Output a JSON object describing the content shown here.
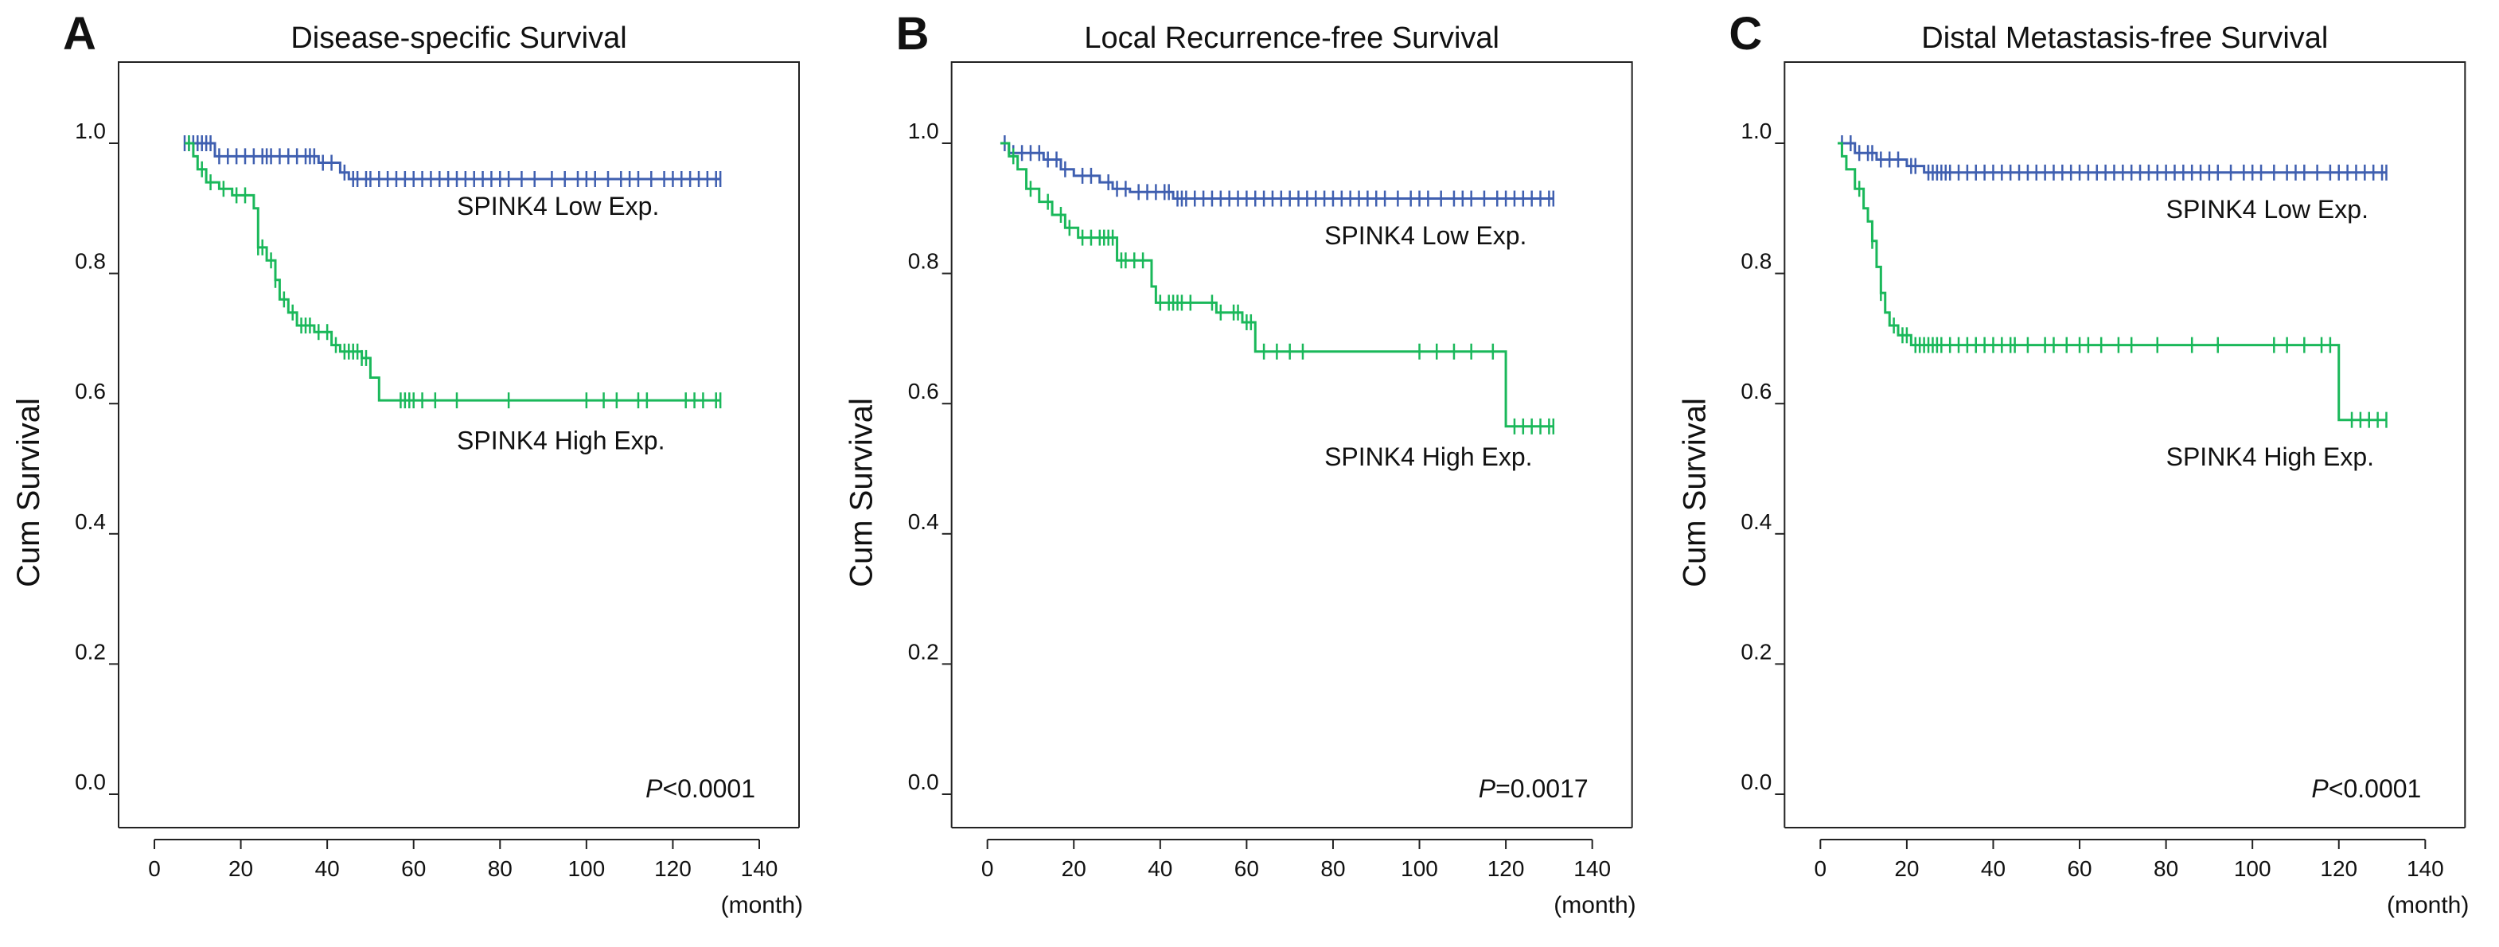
{
  "chart_data": [
    {
      "type": "line",
      "panel": "A",
      "title": "Disease-specific Survival",
      "ylabel": "Cum Survival",
      "xlabel": "(month)",
      "xlim": [
        0,
        140
      ],
      "ylim": [
        0.0,
        1.0
      ],
      "xticks": [
        "0",
        "20",
        "40",
        "60",
        "80",
        "100",
        "120",
        "140"
      ],
      "yticks": [
        "0.0",
        "0.2",
        "0.4",
        "0.6",
        "0.8",
        "1.0"
      ],
      "p_prefix": "P",
      "p_value": "<0.0001",
      "series": [
        {
          "name": "SPINK4 Low Exp.",
          "color": "#3f5fb0",
          "label_pos": [
            70,
            0.89
          ],
          "steps": [
            [
              7,
              1.0
            ],
            [
              14,
              0.98
            ],
            [
              38,
              0.97
            ],
            [
              43,
              0.955
            ],
            [
              45,
              0.945
            ],
            [
              131,
              0.945
            ]
          ],
          "censors": [
            7,
            8,
            9,
            10,
            11,
            12,
            13,
            15,
            17,
            19,
            21,
            23,
            25,
            26,
            27,
            29,
            31,
            33,
            35,
            36,
            37,
            39,
            41,
            44,
            46,
            47,
            49,
            50,
            52,
            54,
            56,
            58,
            60,
            62,
            64,
            66,
            68,
            70,
            72,
            74,
            76,
            78,
            80,
            82,
            85,
            88,
            92,
            95,
            98,
            100,
            102,
            105,
            108,
            110,
            112,
            115,
            118,
            120,
            122,
            124,
            126,
            128,
            130,
            131
          ]
        },
        {
          "name": "SPINK4 High Exp.",
          "color": "#1ab85a",
          "label_pos": [
            70,
            0.53
          ],
          "steps": [
            [
              7,
              1.0
            ],
            [
              9,
              0.98
            ],
            [
              10,
              0.96
            ],
            [
              12,
              0.94
            ],
            [
              15,
              0.93
            ],
            [
              18,
              0.92
            ],
            [
              23,
              0.9
            ],
            [
              24,
              0.84
            ],
            [
              26,
              0.82
            ],
            [
              28,
              0.79
            ],
            [
              29,
              0.76
            ],
            [
              31,
              0.74
            ],
            [
              33,
              0.72
            ],
            [
              37,
              0.71
            ],
            [
              41,
              0.69
            ],
            [
              43,
              0.68
            ],
            [
              48,
              0.67
            ],
            [
              50,
              0.64
            ],
            [
              52,
              0.605
            ],
            [
              131,
              0.605
            ]
          ],
          "censors": [
            8,
            11,
            13,
            16,
            19,
            21,
            24,
            25,
            27,
            28,
            30,
            32,
            34,
            35,
            36,
            38,
            40,
            42,
            44,
            45,
            46,
            47,
            48,
            49,
            57,
            58,
            59,
            60,
            62,
            65,
            70,
            82,
            100,
            104,
            107,
            112,
            114,
            123,
            125,
            127,
            130,
            131
          ]
        }
      ]
    },
    {
      "type": "line",
      "panel": "B",
      "title": "Local Recurrence-free Survival",
      "ylabel": "Cum Survival",
      "xlabel": "(month)",
      "xlim": [
        0,
        140
      ],
      "ylim": [
        0.0,
        1.0
      ],
      "xticks": [
        "0",
        "20",
        "40",
        "60",
        "80",
        "100",
        "120",
        "140"
      ],
      "yticks": [
        "0.0",
        "0.2",
        "0.4",
        "0.6",
        "0.8",
        "1.0"
      ],
      "p_prefix": "P",
      "p_value": "=0.0017",
      "series": [
        {
          "name": "SPINK4 Low Exp.",
          "color": "#3f5fb0",
          "label_pos": [
            78,
            0.845
          ],
          "steps": [
            [
              3,
              1.0
            ],
            [
              5,
              0.985
            ],
            [
              13,
              0.975
            ],
            [
              17,
              0.96
            ],
            [
              20,
              0.95
            ],
            [
              26,
              0.94
            ],
            [
              29,
              0.93
            ],
            [
              33,
              0.925
            ],
            [
              43,
              0.915
            ],
            [
              131,
              0.915
            ]
          ],
          "censors": [
            4,
            6,
            8,
            10,
            12,
            14,
            16,
            18,
            22,
            24,
            28,
            30,
            32,
            35,
            37,
            39,
            41,
            42,
            44,
            45,
            46,
            48,
            50,
            52,
            54,
            56,
            58,
            60,
            62,
            64,
            66,
            68,
            70,
            72,
            74,
            76,
            78,
            80,
            82,
            84,
            86,
            88,
            90,
            92,
            95,
            98,
            100,
            102,
            105,
            108,
            110,
            112,
            115,
            118,
            120,
            122,
            124,
            126,
            128,
            130,
            131
          ]
        },
        {
          "name": "SPINK4 High Exp.",
          "color": "#1ab85a",
          "label_pos": [
            78,
            0.505
          ],
          "steps": [
            [
              3,
              1.0
            ],
            [
              5,
              0.98
            ],
            [
              7,
              0.96
            ],
            [
              9,
              0.93
            ],
            [
              12,
              0.91
            ],
            [
              15,
              0.89
            ],
            [
              18,
              0.87
            ],
            [
              21,
              0.855
            ],
            [
              30,
              0.82
            ],
            [
              38,
              0.78
            ],
            [
              39,
              0.755
            ],
            [
              53,
              0.74
            ],
            [
              59,
              0.725
            ],
            [
              62,
              0.68
            ],
            [
              119,
              0.68
            ],
            [
              120,
              0.565
            ],
            [
              131,
              0.565
            ]
          ],
          "censors": [
            6,
            10,
            14,
            17,
            19,
            22,
            24,
            26,
            27,
            28,
            29,
            31,
            32,
            34,
            36,
            40,
            42,
            43,
            44,
            45,
            47,
            52,
            54,
            57,
            58,
            60,
            61,
            64,
            67,
            70,
            73,
            100,
            104,
            108,
            112,
            117,
            122,
            124,
            126,
            128,
            130,
            131
          ]
        }
      ]
    },
    {
      "type": "line",
      "panel": "C",
      "title": "Distal Metastasis-free Survival",
      "ylabel": "Cum Survival",
      "xlabel": "(month)",
      "xlim": [
        0,
        140
      ],
      "ylim": [
        0.0,
        1.0
      ],
      "xticks": [
        "0",
        "20",
        "40",
        "60",
        "80",
        "100",
        "120",
        "140"
      ],
      "yticks": [
        "0.0",
        "0.2",
        "0.4",
        "0.6",
        "0.8",
        "1.0"
      ],
      "p_prefix": "P",
      "p_value": "<0.0001",
      "series": [
        {
          "name": "SPINK4 Low Exp.",
          "color": "#3f5fb0",
          "label_pos": [
            80,
            0.885
          ],
          "steps": [
            [
              4,
              1.0
            ],
            [
              8,
              0.985
            ],
            [
              13,
              0.975
            ],
            [
              20,
              0.965
            ],
            [
              24,
              0.955
            ],
            [
              131,
              0.955
            ]
          ],
          "censors": [
            5,
            7,
            9,
            11,
            12,
            14,
            16,
            18,
            21,
            22,
            25,
            26,
            27,
            28,
            29,
            30,
            32,
            34,
            36,
            38,
            40,
            42,
            44,
            46,
            48,
            50,
            52,
            54,
            56,
            58,
            60,
            62,
            64,
            66,
            68,
            70,
            72,
            74,
            76,
            78,
            80,
            82,
            84,
            86,
            88,
            90,
            92,
            95,
            98,
            100,
            102,
            105,
            108,
            110,
            112,
            115,
            118,
            120,
            122,
            124,
            126,
            128,
            130,
            131
          ]
        },
        {
          "name": "SPINK4 High Exp.",
          "color": "#1ab85a",
          "label_pos": [
            80,
            0.505
          ],
          "steps": [
            [
              4,
              1.0
            ],
            [
              5,
              0.98
            ],
            [
              6,
              0.96
            ],
            [
              8,
              0.93
            ],
            [
              10,
              0.9
            ],
            [
              11,
              0.88
            ],
            [
              12,
              0.85
            ],
            [
              13,
              0.81
            ],
            [
              14,
              0.77
            ],
            [
              15,
              0.74
            ],
            [
              16,
              0.72
            ],
            [
              18,
              0.705
            ],
            [
              21,
              0.69
            ],
            [
              119,
              0.69
            ],
            [
              120,
              0.575
            ],
            [
              131,
              0.575
            ]
          ],
          "censors": [
            9,
            12,
            14,
            17,
            19,
            20,
            22,
            23,
            24,
            25,
            26,
            27,
            28,
            30,
            32,
            34,
            36,
            38,
            40,
            42,
            44,
            45,
            48,
            52,
            54,
            57,
            60,
            62,
            65,
            69,
            72,
            78,
            86,
            92,
            105,
            108,
            112,
            116,
            118,
            123,
            125,
            127,
            129,
            131
          ]
        }
      ]
    }
  ]
}
